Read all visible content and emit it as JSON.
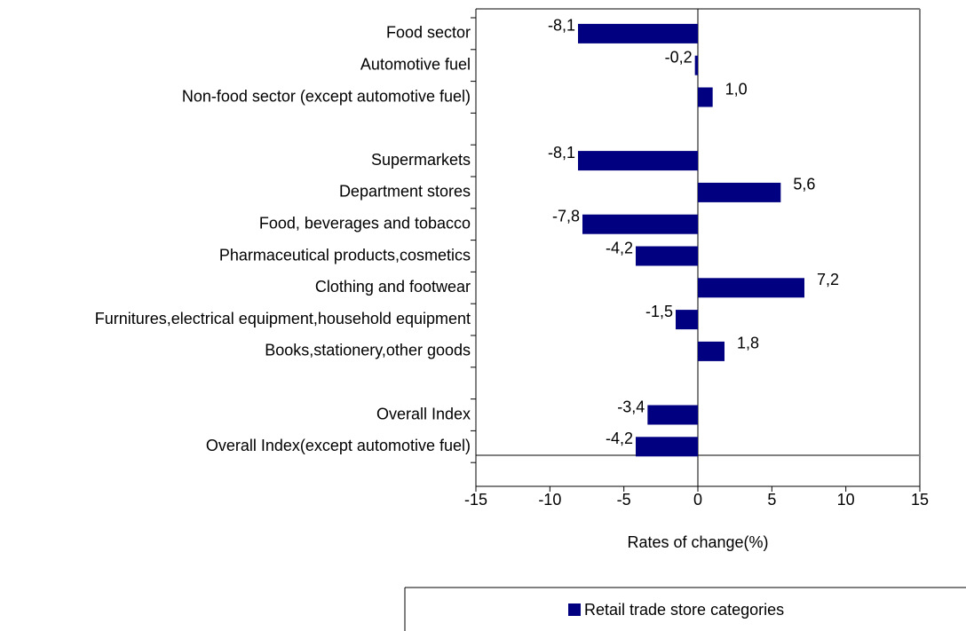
{
  "chart_data": {
    "type": "bar",
    "orientation": "horizontal",
    "categories": [
      "Food sector",
      "Automotive fuel",
      "Non-food sector (except automotive fuel)",
      null,
      "Supermarkets",
      "Department stores",
      "Food, beverages and tobacco",
      "Pharmaceutical products,cosmetics",
      "Clothing and footwear",
      "Furnitures,electrical equipment,household equipment",
      "Books,stationery,other goods",
      null,
      "Overall Index",
      "Overall Index(except automotive fuel)"
    ],
    "series": [
      {
        "name": "Retail trade store categories",
        "color": "#000080",
        "values": [
          -8.1,
          -0.2,
          1.0,
          null,
          -8.1,
          5.6,
          -7.8,
          -4.2,
          7.2,
          -1.5,
          1.8,
          null,
          -3.4,
          -4.2
        ],
        "value_labels": [
          "-8,1",
          "-0,2",
          "1,0",
          null,
          "-8,1",
          "5,6",
          "-7,8",
          "-4,2",
          "7,2",
          "-1,5",
          "1,8",
          null,
          "-3,4",
          "-4,2"
        ]
      }
    ],
    "xlabel": "Rates of change(%)",
    "xlim": [
      -15,
      15
    ],
    "xticks": [
      -15,
      -10,
      -5,
      0,
      5,
      10,
      15
    ]
  }
}
